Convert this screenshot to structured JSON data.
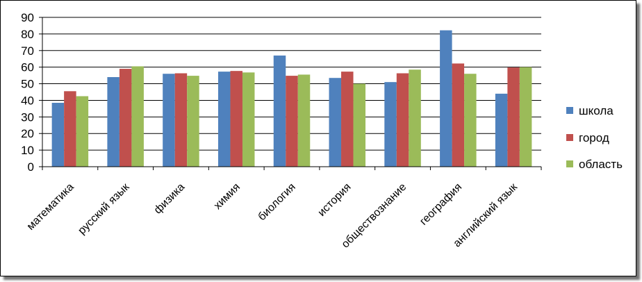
{
  "chart_data": {
    "type": "bar",
    "categories": [
      "математика",
      "русский язык",
      "физика",
      "химия",
      "биология",
      "история",
      "обществознание",
      "география",
      "английский язык"
    ],
    "series": [
      {
        "name": "школа",
        "color": "#4F81BD",
        "values": [
          38.5,
          54,
          56,
          57.3,
          67,
          53.5,
          51,
          82.2,
          44
        ]
      },
      {
        "name": "город",
        "color": "#C0504D",
        "values": [
          45.5,
          59,
          56.3,
          57.7,
          54.8,
          57.3,
          56.3,
          62.2,
          59.8
        ]
      },
      {
        "name": "область",
        "color": "#9BBB59",
        "values": [
          42.5,
          60.5,
          54.8,
          56.8,
          55.5,
          50,
          58.5,
          56,
          60
        ]
      }
    ],
    "yticks": [
      0,
      10,
      20,
      30,
      40,
      50,
      60,
      70,
      80,
      90
    ],
    "ylim": [
      0,
      90
    ],
    "grid": true,
    "legend_position": "right",
    "title": "",
    "xlabel": "",
    "ylabel": ""
  }
}
